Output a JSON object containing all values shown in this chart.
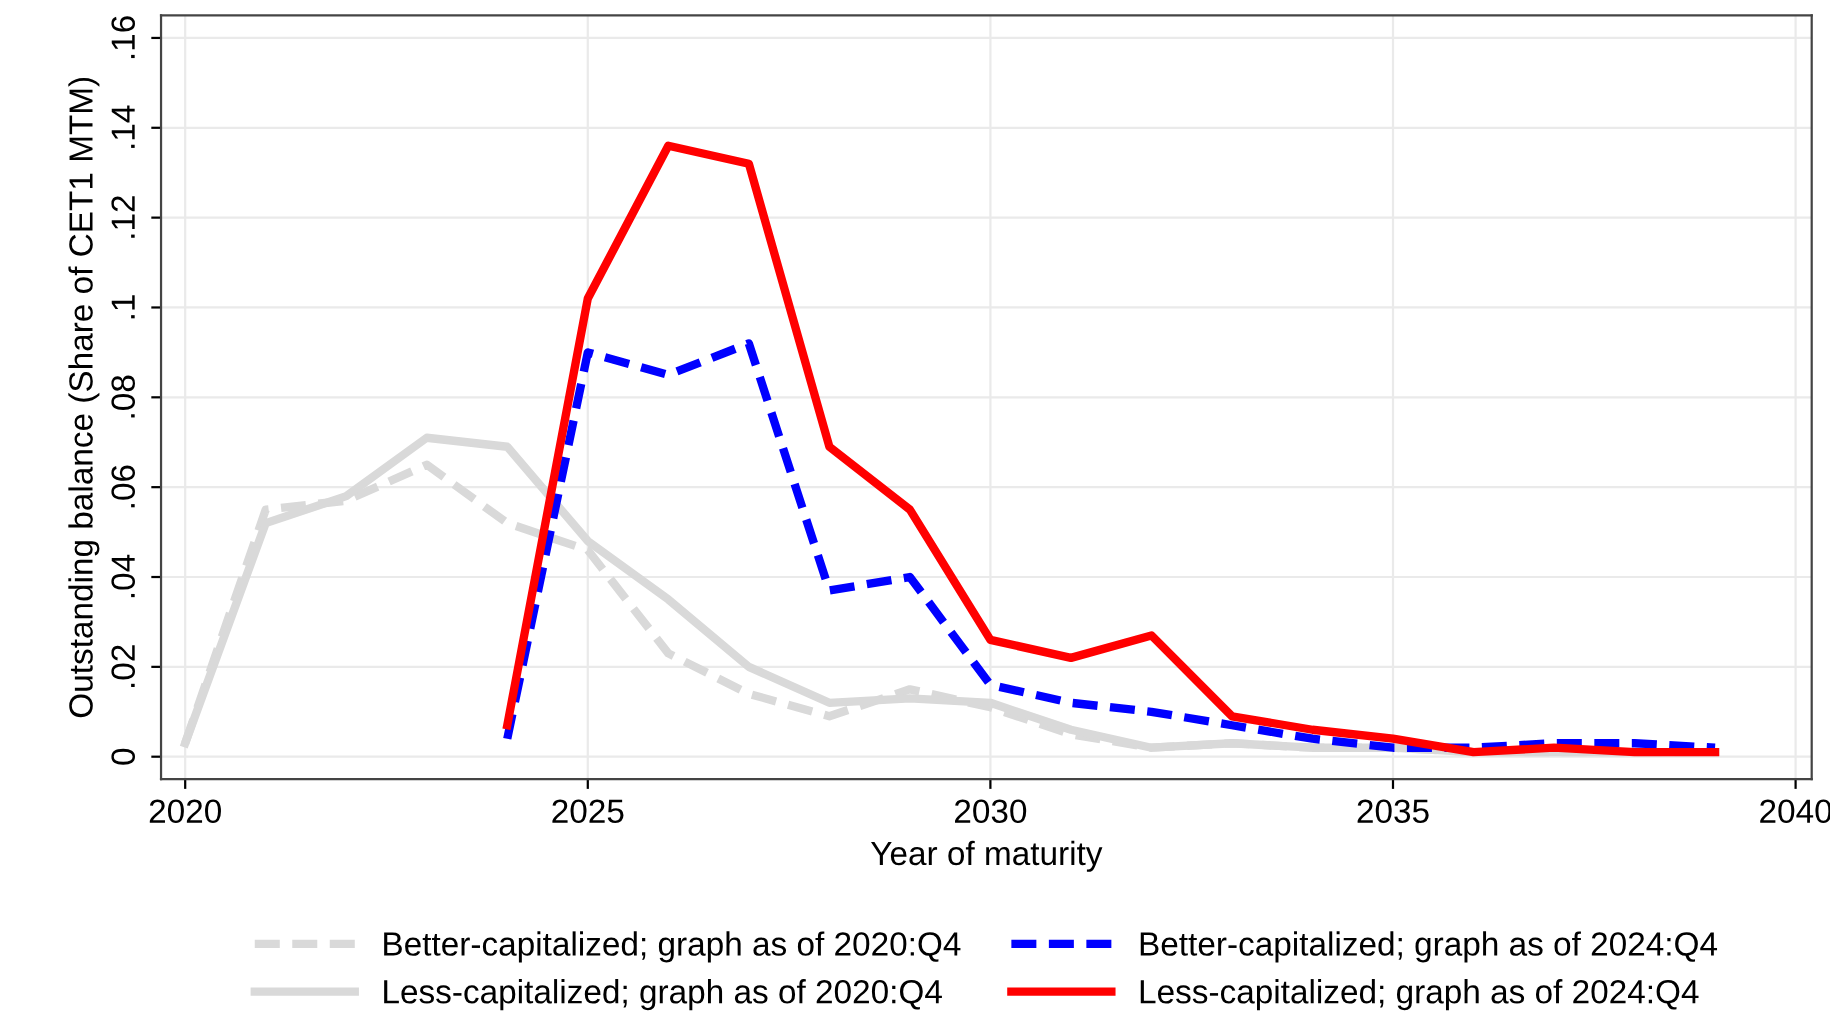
{
  "chart_data": {
    "type": "line",
    "xlabel": "Year of maturity",
    "ylabel": "Outstanding balance (Share of CET1 MTM)",
    "xlim": [
      2019.7,
      2040.2
    ],
    "xticks": [
      2020,
      2025,
      2030,
      2035,
      2040
    ],
    "ylim": [
      -0.005,
      0.165
    ],
    "yticks": [
      0,
      {
        "value": 0.02,
        "label": ".02"
      },
      {
        "value": 0.04,
        "label": ".04"
      },
      {
        "value": 0.06,
        "label": ".06"
      },
      {
        "value": 0.08,
        "label": ".08"
      },
      {
        "value": 0.1,
        "label": ".1"
      },
      {
        "value": 0.12,
        "label": ".12"
      },
      {
        "value": 0.14,
        "label": ".14"
      },
      {
        "value": 0.16,
        "label": ".16"
      }
    ],
    "grid": true,
    "legend": "bottom",
    "marker": "none",
    "series": [
      {
        "name": "Better-capitalized; graph as of 2020:Q4",
        "color": "#d9d9d9",
        "line_style": "dashed",
        "x": [
          2020,
          2021,
          2022,
          2023,
          2024,
          2025,
          2026,
          2027,
          2028,
          2029,
          2030,
          2031,
          2032,
          2033,
          2034,
          2035,
          2036,
          2037,
          2038,
          2039
        ],
        "values": [
          0.003,
          0.055,
          0.057,
          0.065,
          0.052,
          0.046,
          0.023,
          0.014,
          0.009,
          0.015,
          0.011,
          0.005,
          0.002,
          0.003,
          0.002,
          0.002,
          0.001,
          0.001,
          0.001,
          0.001
        ]
      },
      {
        "name": "Less-capitalized; graph as of 2020:Q4",
        "color": "#d9d9d9",
        "line_style": "solid",
        "x": [
          2020,
          2021,
          2022,
          2023,
          2024,
          2025,
          2026,
          2027,
          2028,
          2029,
          2030,
          2031,
          2032,
          2033,
          2034,
          2035,
          2036,
          2037,
          2038,
          2039
        ],
        "values": [
          0.003,
          0.052,
          0.058,
          0.071,
          0.069,
          0.048,
          0.035,
          0.02,
          0.012,
          0.013,
          0.012,
          0.006,
          0.002,
          0.003,
          0.002,
          0.002,
          0.001,
          0.001,
          0.001,
          0.001
        ]
      },
      {
        "name": "Better-capitalized; graph as of 2024:Q4",
        "color": "#0000ff",
        "line_style": "dashed",
        "x": [
          2024,
          2025,
          2026,
          2027,
          2028,
          2029,
          2030,
          2031,
          2032,
          2033,
          2034,
          2035,
          2036,
          2037,
          2038,
          2039
        ],
        "values": [
          0.004,
          0.09,
          0.085,
          0.092,
          0.037,
          0.04,
          0.016,
          0.012,
          0.01,
          0.007,
          0.004,
          0.002,
          0.002,
          0.003,
          0.003,
          0.002
        ]
      },
      {
        "name": "Less-capitalized; graph as of 2024:Q4",
        "color": "#ff0000",
        "line_style": "solid",
        "x": [
          2024,
          2025,
          2026,
          2027,
          2028,
          2029,
          2030,
          2031,
          2032,
          2033,
          2034,
          2035,
          2036,
          2037,
          2038,
          2039
        ],
        "values": [
          0.007,
          0.102,
          0.136,
          0.132,
          0.069,
          0.055,
          0.026,
          0.022,
          0.027,
          0.009,
          0.006,
          0.004,
          0.001,
          0.002,
          0.001,
          0.001
        ]
      }
    ]
  }
}
